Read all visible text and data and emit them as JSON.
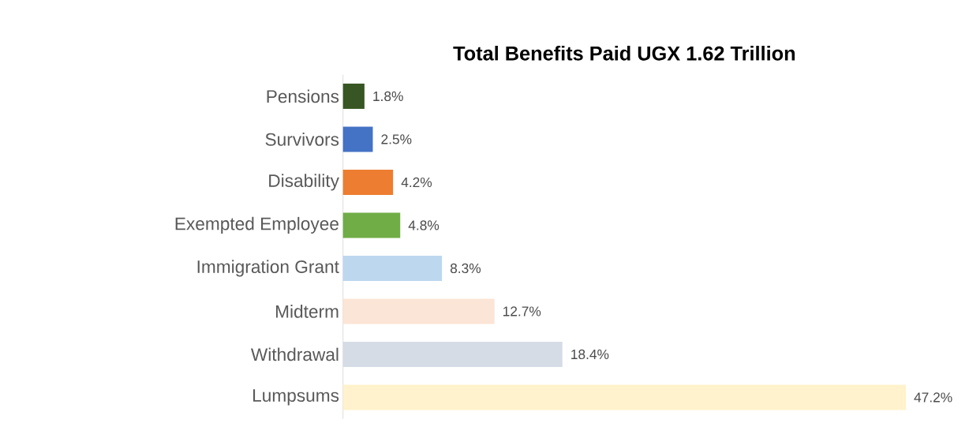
{
  "chart_data": {
    "type": "bar",
    "orientation": "horizontal",
    "title": "Total Benefits Paid UGX 1.62 Trillion",
    "categories": [
      "Pensions",
      "Survivors",
      "Disability",
      "Exempted Employee",
      "Immigration Grant",
      "Midterm",
      "Withdrawal",
      "Lumpsums"
    ],
    "values": [
      1.8,
      2.5,
      4.2,
      4.8,
      8.3,
      12.7,
      18.4,
      47.2
    ],
    "value_labels": [
      "1.8%",
      "2.5%",
      "4.2%",
      "4.8%",
      "8.3%",
      "12.7%",
      "18.4%",
      "47.2%"
    ],
    "colors": [
      "#375623",
      "#4472c4",
      "#ed7d31",
      "#70ad47",
      "#bdd7ee",
      "#fbe5d6",
      "#d6dce5",
      "#fff2cc"
    ]
  }
}
